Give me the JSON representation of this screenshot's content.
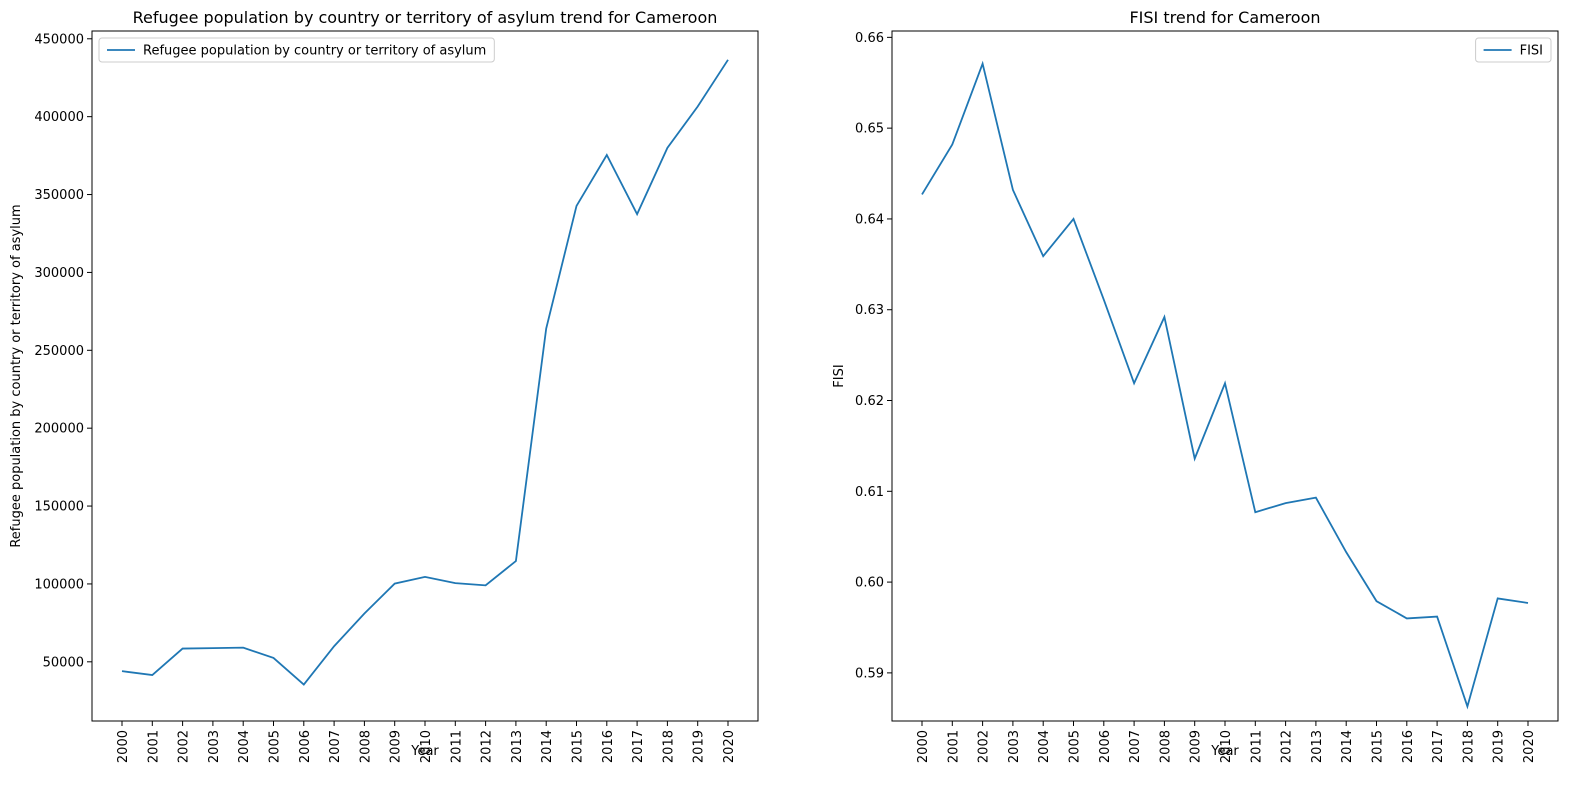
{
  "chart_data": [
    {
      "type": "line",
      "title": "Refugee population by country or territory of asylum trend for Cameroon",
      "xlabel": "Year",
      "ylabel": "Refugee population by country or territory of asylum",
      "x": [
        "2000",
        "2001",
        "2002",
        "2003",
        "2004",
        "2005",
        "2006",
        "2007",
        "2008",
        "2009",
        "2010",
        "2011",
        "2012",
        "2013",
        "2014",
        "2015",
        "2016",
        "2017",
        "2018",
        "2019",
        "2020"
      ],
      "yticks": [
        50000,
        100000,
        150000,
        200000,
        250000,
        300000,
        350000,
        400000,
        450000
      ],
      "ylim": [
        12000,
        455000
      ],
      "series": [
        {
          "name": "Refugee population by country or territory of asylum",
          "color": "#1f77b4",
          "values": [
            44000,
            41500,
            58500,
            58800,
            59100,
            52500,
            35400,
            60000,
            81000,
            100200,
            104500,
            100500,
            99100,
            114700,
            264000,
            342700,
            375400,
            337400,
            380000,
            406500,
            436500
          ]
        }
      ],
      "legend": "top-left",
      "grid": false
    },
    {
      "type": "line",
      "title": "FISI trend for Cameroon",
      "xlabel": "Year",
      "ylabel": "FISI",
      "x": [
        "2000",
        "2001",
        "2002",
        "2003",
        "2004",
        "2005",
        "2006",
        "2007",
        "2008",
        "2009",
        "2010",
        "2011",
        "2012",
        "2013",
        "2014",
        "2015",
        "2016",
        "2017",
        "2018",
        "2019",
        "2020"
      ],
      "yticks": [
        0.59,
        0.6,
        0.61,
        0.62,
        0.63,
        0.64,
        0.65,
        0.66
      ],
      "ytick_labels": [
        "0.59",
        "0.60",
        "0.61",
        "0.62",
        "0.63",
        "0.64",
        "0.65",
        "0.66"
      ],
      "ylim": [
        0.5847,
        0.6607
      ],
      "series": [
        {
          "name": "FISI",
          "color": "#1f77b4",
          "values": [
            0.6427,
            0.6482,
            0.6571,
            0.6432,
            0.6359,
            0.64,
            0.6311,
            0.6219,
            0.6292,
            0.6136,
            0.6219,
            0.6077,
            0.6087,
            0.6093,
            0.6033,
            0.5979,
            0.596,
            0.5962,
            0.5863,
            0.5982,
            0.5977
          ]
        }
      ],
      "legend": "top-right",
      "grid": false
    }
  ]
}
